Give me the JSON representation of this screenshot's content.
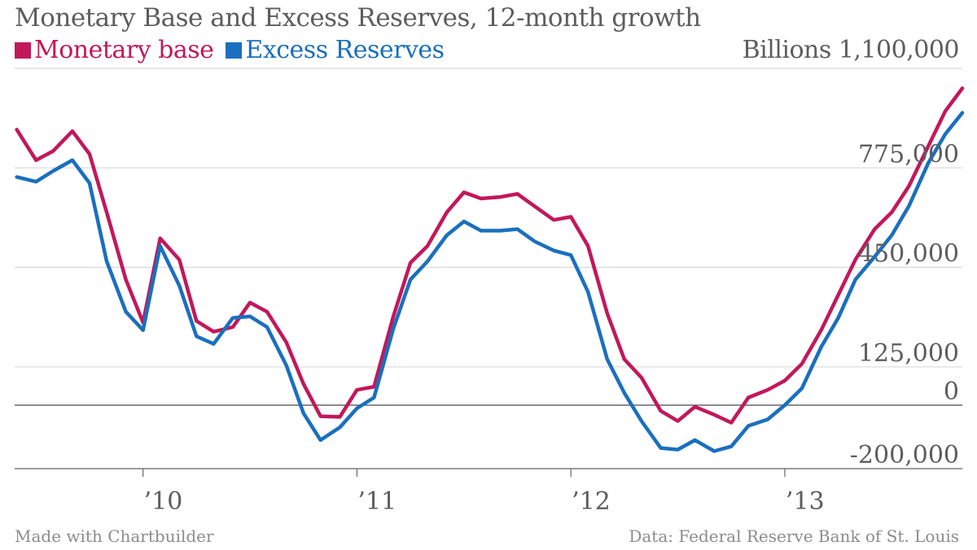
{
  "chart_data": {
    "type": "line",
    "title": "Monetary Base and Excess Reserves, 12-month growth",
    "unit_label": "Billions",
    "y_tick_labels": [
      "1,100,000",
      "775,000",
      "450,000",
      "125,000",
      "0",
      "-200,000"
    ],
    "y_ticks": [
      1100000,
      775000,
      450000,
      125000,
      0,
      -200000
    ],
    "ylim": [
      -200000,
      1100000
    ],
    "x_tick_labels": [
      "’10",
      "’11",
      "’12",
      "’13"
    ],
    "x_ticks": [
      2010,
      2011,
      2012,
      2013
    ],
    "xlim": [
      2009.4,
      2013.83
    ],
    "grid": true,
    "legend_position": "top-left",
    "series": [
      {
        "name": "Monetary base",
        "color": "#c2185b",
        "x": [
          2009.41,
          2009.5,
          2009.58,
          2009.67,
          2009.75,
          2009.83,
          2009.92,
          2010.0,
          2010.08,
          2010.17,
          2010.25,
          2010.33,
          2010.42,
          2010.5,
          2010.58,
          2010.67,
          2010.75,
          2010.83,
          2010.92,
          2011.0,
          2011.08,
          2011.17,
          2011.25,
          2011.33,
          2011.42,
          2011.5,
          2011.58,
          2011.67,
          2011.75,
          2011.83,
          2011.92,
          2012.0,
          2012.08,
          2012.17,
          2012.25,
          2012.33,
          2012.42,
          2012.5,
          2012.58,
          2012.67,
          2012.75,
          2012.83,
          2012.92,
          2013.0,
          2013.08,
          2013.17,
          2013.25,
          2013.33,
          2013.42,
          2013.5,
          2013.58,
          2013.67,
          2013.75,
          2013.83
        ],
        "y": [
          900000,
          800000,
          830000,
          895000,
          820000,
          630000,
          410000,
          270000,
          545000,
          475000,
          275000,
          240000,
          255000,
          335000,
          305000,
          205000,
          70000,
          -35000,
          -37000,
          50000,
          60000,
          290000,
          465000,
          520000,
          630000,
          695000,
          675000,
          680000,
          690000,
          650000,
          605000,
          615000,
          520000,
          300000,
          150000,
          90000,
          -18000,
          -50000,
          -5000,
          -30000,
          -55000,
          25000,
          50000,
          80000,
          135000,
          245000,
          360000,
          475000,
          575000,
          630000,
          715000,
          845000,
          960000,
          1035000
        ]
      },
      {
        "name": "Excess Reserves",
        "color": "#1a6fbf",
        "x": [
          2009.41,
          2009.5,
          2009.58,
          2009.67,
          2009.75,
          2009.83,
          2009.92,
          2010.0,
          2010.08,
          2010.17,
          2010.25,
          2010.33,
          2010.42,
          2010.5,
          2010.58,
          2010.67,
          2010.75,
          2010.83,
          2010.92,
          2011.0,
          2011.08,
          2011.17,
          2011.25,
          2011.33,
          2011.42,
          2011.5,
          2011.58,
          2011.67,
          2011.75,
          2011.83,
          2011.92,
          2012.0,
          2012.08,
          2012.17,
          2012.25,
          2012.33,
          2012.42,
          2012.5,
          2012.58,
          2012.67,
          2012.75,
          2012.83,
          2012.92,
          2013.0,
          2013.08,
          2013.17,
          2013.25,
          2013.33,
          2013.42,
          2013.5,
          2013.58,
          2013.67,
          2013.75,
          2013.83
        ],
        "y": [
          745000,
          730000,
          765000,
          800000,
          725000,
          470000,
          305000,
          245000,
          520000,
          390000,
          225000,
          200000,
          285000,
          290000,
          255000,
          130000,
          -25000,
          -110000,
          -70000,
          -10000,
          25000,
          250000,
          410000,
          470000,
          555000,
          600000,
          570000,
          570000,
          575000,
          535000,
          505000,
          490000,
          370000,
          150000,
          40000,
          -50000,
          -135000,
          -140000,
          -110000,
          -145000,
          -130000,
          -65000,
          -45000,
          0,
          55000,
          190000,
          285000,
          410000,
          485000,
          555000,
          650000,
          790000,
          885000,
          955000
        ]
      }
    ]
  },
  "footer": {
    "credit": "Made with Chartbuilder",
    "source": "Data: Federal Reserve Bank of St. Louis"
  }
}
